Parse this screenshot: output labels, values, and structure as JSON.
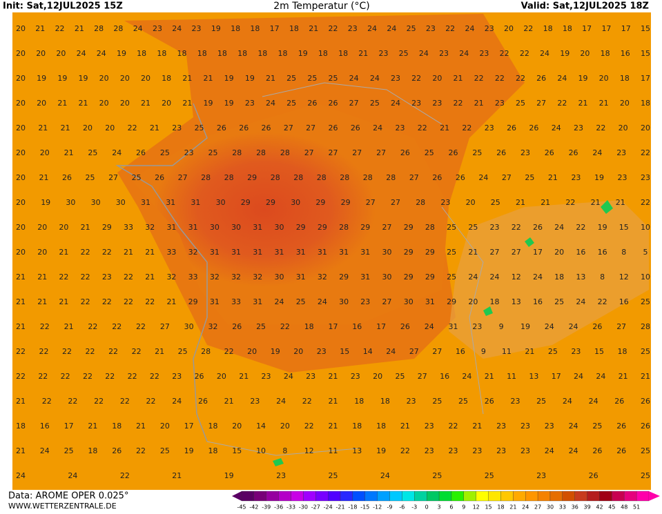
{
  "header": {
    "init": "Init: Sat,12JUL2025 15Z",
    "title": "2m Temperatur (°C)",
    "valid": "Valid: Sat,12JUL2025 18Z"
  },
  "footer": {
    "data": "Data: AROME OPER 0.025°",
    "site": "WWW.WETTERZENTRALE.DE"
  },
  "map_labels": [
    [
      20,
      21,
      22,
      21,
      28,
      28,
      24,
      23,
      24,
      23,
      19,
      18,
      18,
      17,
      18,
      21,
      22,
      23,
      24,
      24,
      25,
      23,
      22,
      24,
      23,
      20,
      22,
      18,
      18,
      17,
      17,
      17,
      15
    ],
    [
      20,
      20,
      20,
      24,
      24,
      19,
      18,
      18,
      18,
      18,
      18,
      18,
      18,
      18,
      19,
      18,
      18,
      21,
      23,
      25,
      24,
      23,
      24,
      23,
      22,
      22,
      24,
      19,
      20,
      18,
      16,
      15
    ],
    [
      20,
      19,
      19,
      19,
      20,
      20,
      20,
      18,
      21,
      21,
      19,
      19,
      21,
      25,
      25,
      25,
      24,
      24,
      23,
      22,
      20,
      21,
      22,
      22,
      22,
      26,
      24,
      19,
      20,
      18,
      17
    ],
    [
      20,
      20,
      21,
      21,
      20,
      20,
      21,
      20,
      21,
      19,
      19,
      23,
      24,
      25,
      26,
      26,
      27,
      25,
      24,
      23,
      23,
      22,
      21,
      23,
      25,
      27,
      22,
      21,
      21,
      20,
      18
    ],
    [
      20,
      21,
      21,
      20,
      20,
      22,
      21,
      23,
      25,
      26,
      26,
      26,
      27,
      27,
      26,
      26,
      24,
      23,
      22,
      21,
      22,
      23,
      26,
      26,
      24,
      23,
      22,
      20,
      20
    ],
    [
      20,
      20,
      21,
      25,
      24,
      26,
      25,
      23,
      25,
      28,
      28,
      28,
      27,
      27,
      27,
      27,
      26,
      25,
      26,
      25,
      26,
      23,
      26,
      26,
      24,
      23,
      22
    ],
    [
      20,
      21,
      26,
      25,
      27,
      25,
      26,
      27,
      28,
      28,
      29,
      28,
      28,
      28,
      28,
      28,
      28,
      27,
      26,
      26,
      24,
      27,
      25,
      21,
      23,
      19,
      23,
      23
    ],
    [
      20,
      19,
      30,
      30,
      30,
      31,
      31,
      31,
      30,
      29,
      29,
      30,
      29,
      29,
      27,
      27,
      28,
      23,
      20,
      25,
      21,
      21,
      22,
      21,
      21,
      22
    ],
    [
      20,
      20,
      20,
      21,
      29,
      33,
      32,
      31,
      31,
      30,
      30,
      31,
      30,
      29,
      29,
      28,
      29,
      27,
      29,
      28,
      25,
      25,
      23,
      22,
      26,
      24,
      22,
      19,
      15,
      10
    ],
    [
      20,
      20,
      21,
      22,
      22,
      21,
      21,
      33,
      32,
      31,
      31,
      31,
      31,
      31,
      31,
      31,
      31,
      30,
      29,
      29,
      25,
      21,
      27,
      27,
      17,
      20,
      16,
      16,
      8,
      5
    ],
    [
      21,
      21,
      22,
      22,
      23,
      22,
      21,
      32,
      33,
      32,
      32,
      32,
      30,
      31,
      32,
      29,
      31,
      30,
      29,
      29,
      25,
      24,
      24,
      12,
      24,
      18,
      13,
      8,
      12,
      10
    ],
    [
      21,
      21,
      21,
      22,
      22,
      22,
      22,
      21,
      29,
      31,
      33,
      31,
      24,
      25,
      24,
      30,
      23,
      27,
      30,
      31,
      29,
      20,
      18,
      13,
      16,
      25,
      24,
      22,
      16,
      25
    ],
    [
      21,
      22,
      21,
      22,
      22,
      22,
      27,
      30,
      32,
      26,
      25,
      22,
      18,
      17,
      16,
      17,
      26,
      24,
      31,
      23,
      9,
      19,
      24,
      24,
      26,
      27,
      28
    ],
    [
      22,
      22,
      22,
      22,
      22,
      22,
      21,
      25,
      28,
      22,
      20,
      19,
      20,
      23,
      15,
      14,
      24,
      27,
      27,
      16,
      9,
      11,
      21,
      25,
      23,
      15,
      18,
      25
    ],
    [
      22,
      22,
      22,
      22,
      22,
      22,
      22,
      23,
      26,
      20,
      21,
      23,
      24,
      23,
      21,
      23,
      20,
      25,
      27,
      16,
      24,
      21,
      11,
      13,
      17,
      24,
      24,
      21,
      21
    ],
    [
      21,
      22,
      22,
      22,
      22,
      22,
      24,
      26,
      21,
      23,
      24,
      22,
      21,
      18,
      18,
      23,
      25,
      25,
      26,
      23,
      25,
      24,
      24,
      26,
      26
    ],
    [
      18,
      16,
      17,
      21,
      18,
      21,
      20,
      17,
      18,
      20,
      14,
      20,
      22,
      21,
      18,
      18,
      21,
      23,
      22,
      21,
      23,
      23,
      23,
      24,
      25,
      26,
      26
    ],
    [
      21,
      24,
      25,
      18,
      26,
      22,
      25,
      19,
      18,
      15,
      10,
      8,
      12,
      11,
      13,
      19,
      22,
      23,
      23,
      23,
      23,
      23,
      24,
      24,
      26,
      26,
      25
    ],
    [
      24,
      24,
      22,
      21,
      19,
      23,
      25,
      24,
      25,
      25,
      23,
      26,
      25
    ]
  ],
  "colorbar": {
    "ticks": [
      -45,
      -42,
      -39,
      -36,
      -33,
      -30,
      -27,
      -24,
      -21,
      -18,
      -15,
      -12,
      -9,
      -6,
      -3,
      0,
      3,
      6,
      9,
      12,
      15,
      18,
      21,
      24,
      27,
      30,
      33,
      36,
      39,
      42,
      45,
      48,
      51
    ],
    "colors": [
      "#5a0064",
      "#780078",
      "#9600a0",
      "#b400c8",
      "#c800e6",
      "#a000ff",
      "#7800ff",
      "#5000ff",
      "#2828ff",
      "#0050ff",
      "#0078ff",
      "#00a0ff",
      "#00c8ff",
      "#00e6e6",
      "#00d2a0",
      "#00c864",
      "#00dc32",
      "#28f000",
      "#a0f000",
      "#ffff00",
      "#ffe600",
      "#ffc800",
      "#ffaa00",
      "#ff9600",
      "#f58200",
      "#e66e00",
      "#d25000",
      "#c83c1e",
      "#b41e1e",
      "#a00014",
      "#c80050",
      "#e6007d",
      "#ff00aa"
    ]
  }
}
